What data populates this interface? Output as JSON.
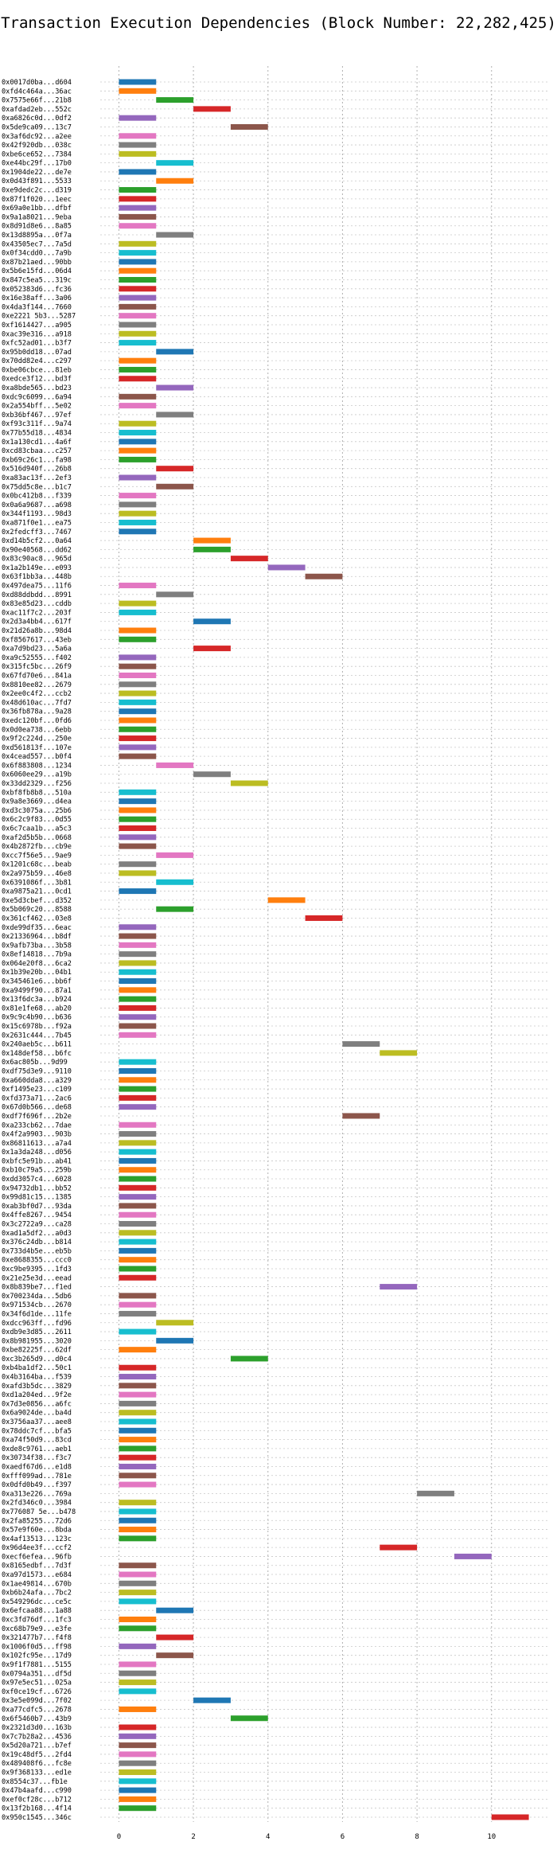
{
  "chart_data": {
    "type": "bar",
    "orientation": "horizontal-gantt",
    "title": "Transaction Execution Dependencies (Block Number: 22,282,425)",
    "xlim": [
      -0.5,
      11.5
    ],
    "xticks": [
      0,
      2,
      4,
      6,
      8,
      10
    ],
    "grid": true,
    "colors": [
      "#1f77b4",
      "#ff7f0e",
      "#2ca02c",
      "#d62728",
      "#9467bd",
      "#8c564b",
      "#e377c2",
      "#7f7f7f",
      "#bcbd22",
      "#17becf"
    ],
    "transactions": [
      {
        "hash": "0x0017d0ba...d604",
        "start": 0,
        "end": 1
      },
      {
        "hash": "0xfd4c464a...36ac",
        "start": 0,
        "end": 1
      },
      {
        "hash": "0x7575e66f...21b8",
        "start": 1,
        "end": 2
      },
      {
        "hash": "0xafdad2eb...552c",
        "start": 2,
        "end": 3
      },
      {
        "hash": "0xa6826c0d...0df2",
        "start": 0,
        "end": 1
      },
      {
        "hash": "0x5de9ca09...13c7",
        "start": 3,
        "end": 4
      },
      {
        "hash": "0x3af6dc92...a2ee",
        "start": 0,
        "end": 1
      },
      {
        "hash": "0x42f920db...038c",
        "start": 0,
        "end": 1
      },
      {
        "hash": "0xbe6ce652...7384",
        "start": 0,
        "end": 1
      },
      {
        "hash": "0xe44bc29f...17b0",
        "start": 1,
        "end": 2
      },
      {
        "hash": "0x1904de22...de7e",
        "start": 0,
        "end": 1
      },
      {
        "hash": "0x0d43f891...5533",
        "start": 1,
        "end": 2
      },
      {
        "hash": "0xe9dedc2c...d319",
        "start": 0,
        "end": 1
      },
      {
        "hash": "0x87f1f020...1eec",
        "start": 0,
        "end": 1
      },
      {
        "hash": "0x69a0e1bb...dfbf",
        "start": 0,
        "end": 1
      },
      {
        "hash": "0x9a1a8021...9eba",
        "start": 0,
        "end": 1
      },
      {
        "hash": "0x8d91d8e6...8a85",
        "start": 0,
        "end": 1
      },
      {
        "hash": "0x13d8895a...0f7a",
        "start": 1,
        "end": 2
      },
      {
        "hash": "0x43505ec7...7a5d",
        "start": 0,
        "end": 1
      },
      {
        "hash": "0x0f34cdd0...7a9b",
        "start": 0,
        "end": 1
      },
      {
        "hash": "0x87b21aed...90bb",
        "start": 0,
        "end": 1
      },
      {
        "hash": "0x5b6e15fd...06d4",
        "start": 0,
        "end": 1
      },
      {
        "hash": "0x847c5ea5...319c",
        "start": 0,
        "end": 1
      },
      {
        "hash": "0x052383d6...fc36",
        "start": 0,
        "end": 1
      },
      {
        "hash": "0x16e38aff...3a06",
        "start": 0,
        "end": 1
      },
      {
        "hash": "0x4da3f144...7660",
        "start": 0,
        "end": 1
      },
      {
        "hash": "0xe2221 5b3...5287",
        "start": 0,
        "end": 1
      },
      {
        "hash": "0xf1614427...a905",
        "start": 0,
        "end": 1
      },
      {
        "hash": "0xac39e316...a918",
        "start": 0,
        "end": 1
      },
      {
        "hash": "0xfc52ad01...b3f7",
        "start": 0,
        "end": 1
      },
      {
        "hash": "0x95b0dd18...07ad",
        "start": 1,
        "end": 2
      },
      {
        "hash": "0x70dd82e4...c297",
        "start": 0,
        "end": 1
      },
      {
        "hash": "0xbe06cbce...81eb",
        "start": 0,
        "end": 1
      },
      {
        "hash": "0xedce3f12...bd3f",
        "start": 0,
        "end": 1
      },
      {
        "hash": "0xa8bde565...bd23",
        "start": 1,
        "end": 2
      },
      {
        "hash": "0xdc9c6099...6a94",
        "start": 0,
        "end": 1
      },
      {
        "hash": "0x2a554bff...5e02",
        "start": 0,
        "end": 1
      },
      {
        "hash": "0xb36bf467...97ef",
        "start": 1,
        "end": 2
      },
      {
        "hash": "0xf93c311f...9a74",
        "start": 0,
        "end": 1
      },
      {
        "hash": "0x77b55d18...4834",
        "start": 0,
        "end": 1
      },
      {
        "hash": "0x1a130cd1...4a6f",
        "start": 0,
        "end": 1
      },
      {
        "hash": "0xcd83cbaa...c257",
        "start": 0,
        "end": 1
      },
      {
        "hash": "0xb69c26c1...fa98",
        "start": 0,
        "end": 1
      },
      {
        "hash": "0x516d940f...26b8",
        "start": 1,
        "end": 2
      },
      {
        "hash": "0xa83ac13f...2ef3",
        "start": 0,
        "end": 1
      },
      {
        "hash": "0x75dd5c8e...b1c7",
        "start": 1,
        "end": 2
      },
      {
        "hash": "0x0bc412b8...f339",
        "start": 0,
        "end": 1
      },
      {
        "hash": "0x0a6a9687...a698",
        "start": 0,
        "end": 1
      },
      {
        "hash": "0x344f1193...98d3",
        "start": 0,
        "end": 1
      },
      {
        "hash": "0xa871f0e1...ea75",
        "start": 0,
        "end": 1
      },
      {
        "hash": "0x2fedcff3...7467",
        "start": 0,
        "end": 1
      },
      {
        "hash": "0xd14b5cf2...0a64",
        "start": 2,
        "end": 3
      },
      {
        "hash": "0x90e40568...dd62",
        "start": 2,
        "end": 3
      },
      {
        "hash": "0x83c90ac8...965d",
        "start": 3,
        "end": 4
      },
      {
        "hash": "0x1a2b149e...e093",
        "start": 4,
        "end": 5
      },
      {
        "hash": "0x63f1bb3a...448b",
        "start": 5,
        "end": 6
      },
      {
        "hash": "0x497dea75...11f6",
        "start": 0,
        "end": 1
      },
      {
        "hash": "0xd88ddbdd...8991",
        "start": 1,
        "end": 2
      },
      {
        "hash": "0x83e85d23...cddb",
        "start": 0,
        "end": 1
      },
      {
        "hash": "0xac11f7c2...203f",
        "start": 0,
        "end": 1
      },
      {
        "hash": "0x2d3a4bb4...617f",
        "start": 2,
        "end": 3
      },
      {
        "hash": "0x21d26a8b...98d4",
        "start": 0,
        "end": 1
      },
      {
        "hash": "0xf8567617...43eb",
        "start": 0,
        "end": 1
      },
      {
        "hash": "0xa7d9bd23...5a6a",
        "start": 2,
        "end": 3
      },
      {
        "hash": "0xa9c52555...f402",
        "start": 0,
        "end": 1
      },
      {
        "hash": "0x315fc5bc...26f9",
        "start": 0,
        "end": 1
      },
      {
        "hash": "0x67fd70e6...841a",
        "start": 0,
        "end": 1
      },
      {
        "hash": "0x8810ee82...2679",
        "start": 0,
        "end": 1
      },
      {
        "hash": "0x2ee0c4f2...ccb2",
        "start": 0,
        "end": 1
      },
      {
        "hash": "0x48d610ac...7fd7",
        "start": 0,
        "end": 1
      },
      {
        "hash": "0x36fb878a...9a28",
        "start": 0,
        "end": 1
      },
      {
        "hash": "0xedc120bf...0fd6",
        "start": 0,
        "end": 1
      },
      {
        "hash": "0x0d0ea738...6ebb",
        "start": 0,
        "end": 1
      },
      {
        "hash": "0x9f2c224d...250e",
        "start": 0,
        "end": 1
      },
      {
        "hash": "0xd561813f...107e",
        "start": 0,
        "end": 1
      },
      {
        "hash": "0x4cead557...b0f4",
        "start": 0,
        "end": 1
      },
      {
        "hash": "0x6f883808...1234",
        "start": 1,
        "end": 2
      },
      {
        "hash": "0x6060ee29...a19b",
        "start": 2,
        "end": 3
      },
      {
        "hash": "0x33dd2329...f256",
        "start": 3,
        "end": 4
      },
      {
        "hash": "0xbf8fb8b8...510a",
        "start": 0,
        "end": 1
      },
      {
        "hash": "0x9a8e3669...d4ea",
        "start": 0,
        "end": 1
      },
      {
        "hash": "0xd3c3075a...25b6",
        "start": 0,
        "end": 1
      },
      {
        "hash": "0x6c2c9f83...0d55",
        "start": 0,
        "end": 1
      },
      {
        "hash": "0x6c7caa1b...a5c3",
        "start": 0,
        "end": 1
      },
      {
        "hash": "0xaf2d5b5b...0668",
        "start": 0,
        "end": 1
      },
      {
        "hash": "0x4b2872fb...cb9e",
        "start": 0,
        "end": 1
      },
      {
        "hash": "0xcc7f56e5...9ae9",
        "start": 1,
        "end": 2
      },
      {
        "hash": "0x1201c68c...beab",
        "start": 0,
        "end": 1
      },
      {
        "hash": "0x2a975b59...46e8",
        "start": 0,
        "end": 1
      },
      {
        "hash": "0x6391086f...3b81",
        "start": 1,
        "end": 2
      },
      {
        "hash": "0xa9875a21...0cd1",
        "start": 0,
        "end": 1
      },
      {
        "hash": "0xe5d3cbef...d352",
        "start": 4,
        "end": 5
      },
      {
        "hash": "0x5b069c20...8588",
        "start": 1,
        "end": 2
      },
      {
        "hash": "0x361cf462...03e8",
        "start": 5,
        "end": 6
      },
      {
        "hash": "0xde99df35...6eac",
        "start": 0,
        "end": 1
      },
      {
        "hash": "0x21336964...b8df",
        "start": 0,
        "end": 1
      },
      {
        "hash": "0x9afb73ba...3b58",
        "start": 0,
        "end": 1
      },
      {
        "hash": "0x8ef14818...7b9a",
        "start": 0,
        "end": 1
      },
      {
        "hash": "0x064e20f8...6ca2",
        "start": 0,
        "end": 1
      },
      {
        "hash": "0x1b39e20b...04b1",
        "start": 0,
        "end": 1
      },
      {
        "hash": "0x345461e6...bb6f",
        "start": 0,
        "end": 1
      },
      {
        "hash": "0xa9499f90...87a1",
        "start": 0,
        "end": 1
      },
      {
        "hash": "0x13f6dc3a...b924",
        "start": 0,
        "end": 1
      },
      {
        "hash": "0x81e1fe68...ab20",
        "start": 0,
        "end": 1
      },
      {
        "hash": "0x9c9c4b90...b636",
        "start": 0,
        "end": 1
      },
      {
        "hash": "0x15c6978b...f92a",
        "start": 0,
        "end": 1
      },
      {
        "hash": "0x2631c444...7b45",
        "start": 0,
        "end": 1
      },
      {
        "hash": "0x240aeb5c...b611",
        "start": 6,
        "end": 7
      },
      {
        "hash": "0x148def58...b6fc",
        "start": 7,
        "end": 8
      },
      {
        "hash": "0x6ac805b...9d99",
        "start": 0,
        "end": 1
      },
      {
        "hash": "0xdf75d3e9...9110",
        "start": 0,
        "end": 1
      },
      {
        "hash": "0xa660dda8...a329",
        "start": 0,
        "end": 1
      },
      {
        "hash": "0xf1495e23...c109",
        "start": 0,
        "end": 1
      },
      {
        "hash": "0xfd373a71...2ac6",
        "start": 0,
        "end": 1
      },
      {
        "hash": "0x67d0b566...de68",
        "start": 0,
        "end": 1
      },
      {
        "hash": "0xdf7f696f...2b2e",
        "start": 6,
        "end": 7
      },
      {
        "hash": "0xa233cb62...7dae",
        "start": 0,
        "end": 1
      },
      {
        "hash": "0x4f2a9903...903b",
        "start": 0,
        "end": 1
      },
      {
        "hash": "0x86811613...a7a4",
        "start": 0,
        "end": 1
      },
      {
        "hash": "0x1a3da248...d056",
        "start": 0,
        "end": 1
      },
      {
        "hash": "0xbfc5e91b...ab41",
        "start": 0,
        "end": 1
      },
      {
        "hash": "0xb10c79a5...259b",
        "start": 0,
        "end": 1
      },
      {
        "hash": "0xdd3057c4...6028",
        "start": 0,
        "end": 1
      },
      {
        "hash": "0x94732db1...bb52",
        "start": 0,
        "end": 1
      },
      {
        "hash": "0x99d81c15...1385",
        "start": 0,
        "end": 1
      },
      {
        "hash": "0xab3bf0d7...93da",
        "start": 0,
        "end": 1
      },
      {
        "hash": "0x4ffe8267...9454",
        "start": 0,
        "end": 1
      },
      {
        "hash": "0x3c2722a9...ca28",
        "start": 0,
        "end": 1
      },
      {
        "hash": "0xad1a5df2...a0d3",
        "start": 0,
        "end": 1
      },
      {
        "hash": "0x376c24db...b814",
        "start": 0,
        "end": 1
      },
      {
        "hash": "0x733d4b5e...eb5b",
        "start": 0,
        "end": 1
      },
      {
        "hash": "0xe8688355...ccc0",
        "start": 0,
        "end": 1
      },
      {
        "hash": "0xc9be9395...1fd3",
        "start": 0,
        "end": 1
      },
      {
        "hash": "0x21e25e3d...eead",
        "start": 0,
        "end": 1
      },
      {
        "hash": "0x8b839be7...f1ed",
        "start": 7,
        "end": 8
      },
      {
        "hash": "0x700234da...5db6",
        "start": 0,
        "end": 1
      },
      {
        "hash": "0x971534cb...2670",
        "start": 0,
        "end": 1
      },
      {
        "hash": "0x34f6d1de...11fe",
        "start": 0,
        "end": 1
      },
      {
        "hash": "0xdcc963ff...fd96",
        "start": 1,
        "end": 2
      },
      {
        "hash": "0xdb9e3d85...2611",
        "start": 0,
        "end": 1
      },
      {
        "hash": "0x8b981955...3020",
        "start": 1,
        "end": 2
      },
      {
        "hash": "0xbe82225f...62df",
        "start": 0,
        "end": 1
      },
      {
        "hash": "0xc3b265d9...d0c4",
        "start": 3,
        "end": 4
      },
      {
        "hash": "0xb4ba1df2...50c1",
        "start": 0,
        "end": 1
      },
      {
        "hash": "0x4b3164ba...f539",
        "start": 0,
        "end": 1
      },
      {
        "hash": "0xafd3b5dc...3829",
        "start": 0,
        "end": 1
      },
      {
        "hash": "0xd1a204ed...9f2e",
        "start": 0,
        "end": 1
      },
      {
        "hash": "0x7d3e0856...a6fc",
        "start": 0,
        "end": 1
      },
      {
        "hash": "0x6a9024de...ba4d",
        "start": 0,
        "end": 1
      },
      {
        "hash": "0x3756aa37...aee8",
        "start": 0,
        "end": 1
      },
      {
        "hash": "0x78ddc7cf...bfa5",
        "start": 0,
        "end": 1
      },
      {
        "hash": "0xa74f50d9...83cd",
        "start": 0,
        "end": 1
      },
      {
        "hash": "0xde8c9761...aeb1",
        "start": 0,
        "end": 1
      },
      {
        "hash": "0x30734f38...f3c7",
        "start": 0,
        "end": 1
      },
      {
        "hash": "0xaedf67d6...e1d8",
        "start": 0,
        "end": 1
      },
      {
        "hash": "0xfff099ad...781e",
        "start": 0,
        "end": 1
      },
      {
        "hash": "0x0dfd0b49...f397",
        "start": 0,
        "end": 1
      },
      {
        "hash": "0xa313e226...769a",
        "start": 8,
        "end": 9
      },
      {
        "hash": "0x2fd346c0...3984",
        "start": 0,
        "end": 1
      },
      {
        "hash": "0x776087 5e...b478",
        "start": 0,
        "end": 1
      },
      {
        "hash": "0x2fa85255...72d6",
        "start": 0,
        "end": 1
      },
      {
        "hash": "0x57e9f60e...8bda",
        "start": 0,
        "end": 1
      },
      {
        "hash": "0x4af13513...123c",
        "start": 0,
        "end": 1
      },
      {
        "hash": "0x96d4ee3f...ccf2",
        "start": 7,
        "end": 8
      },
      {
        "hash": "0xecf6efea...96fb",
        "start": 9,
        "end": 10
      },
      {
        "hash": "0x8165edbf...7d3f",
        "start": 0,
        "end": 1
      },
      {
        "hash": "0xa97d1573...e684",
        "start": 0,
        "end": 1
      },
      {
        "hash": "0x1ae49814...670b",
        "start": 0,
        "end": 1
      },
      {
        "hash": "0xb6b24afa...7bc2",
        "start": 0,
        "end": 1
      },
      {
        "hash": "0x549296dc...ce5c",
        "start": 0,
        "end": 1
      },
      {
        "hash": "0x6efcaa88...1a88",
        "start": 1,
        "end": 2
      },
      {
        "hash": "0xc3fd76df...1fc3",
        "start": 0,
        "end": 1
      },
      {
        "hash": "0xc68b79e9...e3fe",
        "start": 0,
        "end": 1
      },
      {
        "hash": "0x321477b7...f4f8",
        "start": 1,
        "end": 2
      },
      {
        "hash": "0x1006f0d5...ff98",
        "start": 0,
        "end": 1
      },
      {
        "hash": "0x102fc95e...17d9",
        "start": 1,
        "end": 2
      },
      {
        "hash": "0x9f1f7881...5155",
        "start": 0,
        "end": 1
      },
      {
        "hash": "0x0794a351...df5d",
        "start": 0,
        "end": 1
      },
      {
        "hash": "0x97e5ec51...025a",
        "start": 0,
        "end": 1
      },
      {
        "hash": "0xf0ce19cf...6726",
        "start": 0,
        "end": 1
      },
      {
        "hash": "0x3e5e099d...7f02",
        "start": 2,
        "end": 3
      },
      {
        "hash": "0xa77cdfc5...2678",
        "start": 0,
        "end": 1
      },
      {
        "hash": "0x6f5460b7...43b9",
        "start": 3,
        "end": 4
      },
      {
        "hash": "0x2321d3d0...163b",
        "start": 0,
        "end": 1
      },
      {
        "hash": "0x7c7b28a2...4536",
        "start": 0,
        "end": 1
      },
      {
        "hash": "0x5d20a721...b7ef",
        "start": 0,
        "end": 1
      },
      {
        "hash": "0x19c48df5...2fd4",
        "start": 0,
        "end": 1
      },
      {
        "hash": "0x489408f6...fc8e",
        "start": 0,
        "end": 1
      },
      {
        "hash": "0x9f368133...ed1e",
        "start": 0,
        "end": 1
      },
      {
        "hash": "0x8554c37...fb1e",
        "start": 0,
        "end": 1
      },
      {
        "hash": "0x47b4aafd...c990",
        "start": 0,
        "end": 1
      },
      {
        "hash": "0xef0cf28c...b712",
        "start": 0,
        "end": 1
      },
      {
        "hash": "0x13f2b168...4f14",
        "start": 0,
        "end": 1
      },
      {
        "hash": "0x950c1545...346c",
        "start": 10,
        "end": 11
      }
    ]
  }
}
